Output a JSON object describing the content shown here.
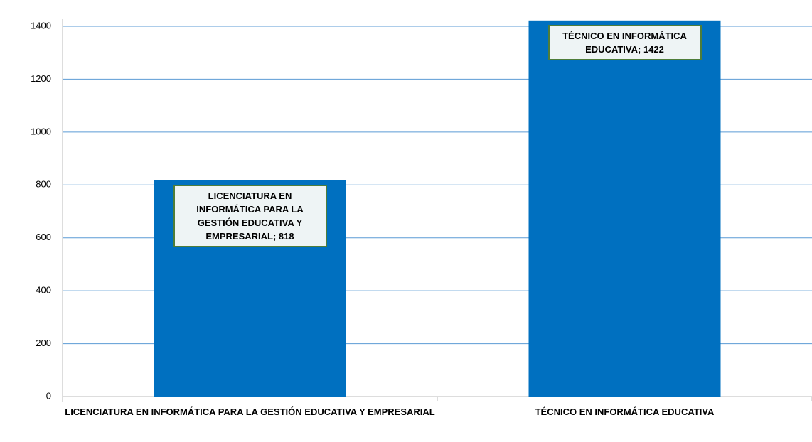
{
  "chart_data": {
    "type": "bar",
    "categories": [
      "LICENCIATURA EN INFORMÁTICA PARA LA GESTIÓN EDUCATIVA Y EMPRESARIAL",
      "TÉCNICO EN INFORMÁTICA EDUCATIVA"
    ],
    "values": [
      818,
      1422
    ],
    "value_labels": [
      "LICENCIATURA EN INFORMÁTICA PARA LA GESTIÓN EDUCATIVA Y EMPRESARIAL; 818",
      "TÉCNICO EN INFORMÁTICA EDUCATIVA; 1422"
    ],
    "color": "#0070c0",
    "ylim": [
      0,
      1400
    ],
    "yticks": [
      0,
      200,
      400,
      600,
      800,
      1000,
      1200,
      1400
    ],
    "grid": true,
    "grid_color": "#5b9bd5"
  }
}
